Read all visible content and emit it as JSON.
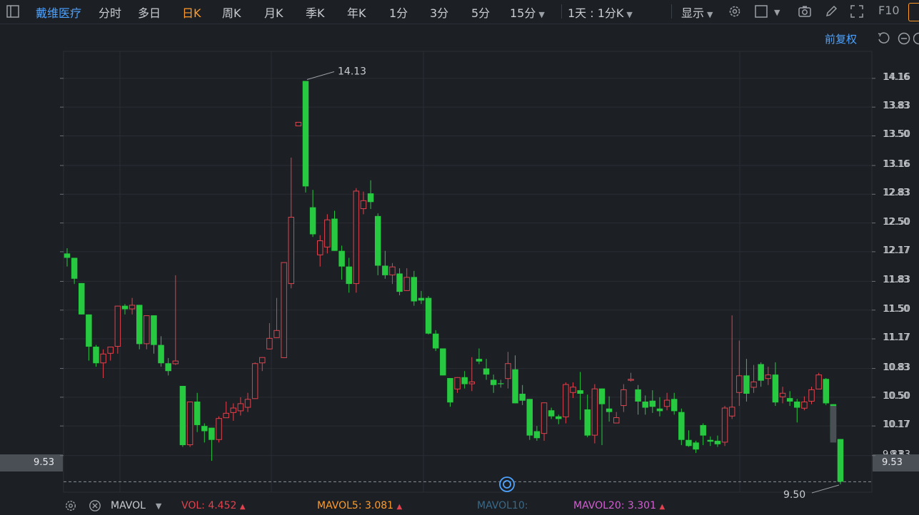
{
  "toolbar": {
    "stock_name": "戴维医疗",
    "periods": [
      "分时",
      "多日",
      "日K",
      "周K",
      "月K",
      "季K",
      "年K",
      "1分",
      "3分",
      "5分",
      "15分"
    ],
    "active_period": "日K",
    "interval_label": "1天 : 1分K",
    "display_label": "显示",
    "f10_label": "F10"
  },
  "subheader": {
    "adjust_label": "前复权"
  },
  "legend": {
    "indicator": "MAVOL",
    "vol_label": "VOL:",
    "vol_value": "4.452",
    "mavol5_label": "MAVOL5:",
    "mavol5_value": "3.081",
    "mavol10_label": "MAVOL10:",
    "mavol20_label": "MAVOL20:",
    "mavol20_value": "3.301"
  },
  "colors": {
    "up": "#e0434f",
    "down": "#26c940",
    "accent": "#ff9c2a",
    "link": "#4da3ff",
    "mavol5": "#ff9c2a",
    "mavol10": "#3a6a8a",
    "mavol20": "#d35fd3"
  },
  "chart_data": {
    "type": "candlestick",
    "y_ticks": [
      "14.16",
      "13.83",
      "13.50",
      "13.16",
      "12.83",
      "12.50",
      "12.17",
      "11.83",
      "11.50",
      "11.17",
      "10.83",
      "10.50",
      "10.17",
      "9.83"
    ],
    "ylim": [
      9.41,
      14.47
    ],
    "current_price": "9.53",
    "high_annotation": {
      "label": "14.13",
      "value": 14.13
    },
    "low_annotation": {
      "label": "9.50",
      "value": 9.5
    },
    "candles": [
      [
        12.15,
        12.1,
        12.21,
        12.0
      ],
      [
        12.1,
        11.86,
        12.1,
        11.8
      ],
      [
        11.81,
        11.45,
        11.81,
        11.45
      ],
      [
        11.45,
        11.08,
        11.45,
        10.92
      ],
      [
        11.08,
        10.89,
        11.1,
        10.85
      ],
      [
        10.89,
        11.0,
        11.05,
        10.72
      ],
      [
        11.0,
        11.08,
        11.08,
        10.92
      ],
      [
        11.08,
        11.55,
        11.55,
        11.0
      ],
      [
        11.55,
        11.51,
        11.57,
        11.45
      ],
      [
        11.51,
        11.56,
        11.64,
        11.45
      ],
      [
        11.56,
        11.11,
        11.56,
        11.05
      ],
      [
        11.11,
        11.44,
        11.44,
        11.05
      ],
      [
        11.44,
        11.1,
        11.44,
        11.0
      ],
      [
        11.1,
        10.89,
        11.2,
        10.85
      ],
      [
        10.89,
        10.8,
        10.95,
        10.75
      ],
      [
        10.88,
        10.92,
        11.9,
        10.87
      ],
      [
        10.63,
        9.95,
        10.63,
        9.93
      ],
      [
        9.95,
        10.45,
        10.45,
        9.93
      ],
      [
        10.45,
        10.18,
        10.55,
        10.1
      ],
      [
        10.17,
        10.11,
        10.2,
        9.98
      ],
      [
        10.15,
        10.01,
        10.15,
        9.77
      ],
      [
        10.01,
        10.26,
        10.28,
        9.98
      ],
      [
        10.26,
        10.32,
        10.45,
        10.28
      ],
      [
        10.32,
        10.38,
        10.43,
        10.23
      ],
      [
        10.34,
        10.43,
        10.5,
        10.29
      ],
      [
        10.38,
        10.48,
        10.55,
        10.33
      ],
      [
        10.48,
        10.89,
        10.9,
        10.48
      ],
      [
        10.89,
        10.96,
        10.96,
        10.8
      ],
      [
        11.05,
        11.18,
        11.35,
        11.05
      ],
      [
        11.18,
        11.27,
        11.64,
        11.18
      ],
      [
        10.95,
        12.05,
        12.05,
        10.95
      ],
      [
        11.8,
        12.57,
        13.25,
        11.75
      ],
      [
        13.61,
        13.66,
        13.66,
        13.61
      ],
      [
        14.13,
        12.92,
        14.13,
        12.85
      ],
      [
        12.68,
        12.37,
        12.88,
        12.34
      ],
      [
        12.13,
        12.3,
        12.36,
        12.0
      ],
      [
        12.22,
        12.54,
        12.6,
        12.15
      ],
      [
        12.55,
        12.18,
        12.64,
        12.18
      ],
      [
        12.18,
        12.0,
        12.24,
        11.85
      ],
      [
        12.0,
        11.8,
        12.1,
        11.7
      ],
      [
        11.8,
        12.87,
        12.9,
        11.7
      ],
      [
        12.66,
        12.76,
        12.86,
        12.6
      ],
      [
        12.84,
        12.74,
        12.99,
        12.66
      ],
      [
        12.58,
        12.01,
        12.61,
        11.9
      ],
      [
        12.01,
        11.9,
        12.18,
        11.86
      ],
      [
        11.9,
        12.0,
        12.04,
        11.8
      ],
      [
        11.92,
        11.71,
        11.98,
        11.67
      ],
      [
        11.72,
        11.88,
        11.98,
        11.72
      ],
      [
        11.88,
        11.6,
        11.95,
        11.55
      ],
      [
        11.64,
        11.61,
        11.72,
        11.57
      ],
      [
        11.64,
        11.23,
        11.66,
        11.22
      ],
      [
        11.23,
        11.06,
        11.27,
        11.03
      ],
      [
        11.06,
        10.75,
        11.06,
        10.75
      ],
      [
        10.72,
        10.44,
        10.72,
        10.39
      ],
      [
        10.59,
        10.73,
        10.73,
        10.55
      ],
      [
        10.73,
        10.65,
        10.8,
        10.6
      ],
      [
        10.65,
        10.68,
        10.96,
        10.57
      ],
      [
        10.94,
        10.91,
        11.06,
        10.88
      ],
      [
        10.83,
        10.76,
        10.94,
        10.7
      ],
      [
        10.7,
        10.64,
        10.76,
        10.55
      ],
      [
        10.66,
        10.65,
        10.7,
        10.61
      ],
      [
        10.71,
        10.89,
        11.02,
        10.6
      ],
      [
        10.82,
        10.43,
        10.98,
        10.43
      ],
      [
        10.54,
        10.46,
        10.64,
        10.41
      ],
      [
        10.48,
        10.06,
        10.48,
        10.01
      ],
      [
        10.11,
        10.03,
        10.17,
        10.0
      ],
      [
        10.08,
        10.44,
        10.44,
        10.0
      ],
      [
        10.35,
        10.28,
        10.38,
        10.25
      ],
      [
        10.28,
        10.25,
        10.3,
        10.19
      ],
      [
        10.27,
        10.65,
        10.67,
        10.2
      ],
      [
        10.55,
        10.62,
        10.67,
        10.49
      ],
      [
        10.58,
        10.54,
        10.79,
        10.24
      ],
      [
        10.36,
        10.06,
        10.53,
        10.04
      ],
      [
        10.06,
        10.6,
        10.65,
        9.97
      ],
      [
        10.6,
        10.42,
        10.6,
        9.95
      ],
      [
        10.37,
        10.33,
        10.51,
        10.22
      ],
      [
        10.2,
        10.27,
        10.33,
        10.25
      ],
      [
        10.4,
        10.59,
        10.65,
        10.33
      ],
      [
        10.69,
        10.71,
        10.78,
        10.68
      ],
      [
        10.59,
        10.45,
        10.64,
        10.3
      ],
      [
        10.45,
        10.38,
        10.52,
        10.3
      ],
      [
        10.46,
        10.39,
        10.58,
        10.32
      ],
      [
        10.37,
        10.34,
        10.5,
        10.28
      ],
      [
        10.39,
        10.47,
        10.55,
        10.35
      ],
      [
        10.48,
        10.34,
        10.55,
        10.3
      ],
      [
        10.33,
        10.01,
        10.37,
        9.95
      ],
      [
        10.01,
        9.94,
        10.12,
        9.93
      ],
      [
        9.98,
        9.9,
        10.0,
        9.86
      ],
      [
        10.18,
        10.06,
        10.2,
        9.95
      ],
      [
        10.01,
        9.99,
        10.05,
        9.94
      ],
      [
        10.0,
        9.96,
        10.06,
        9.93
      ],
      [
        9.98,
        10.38,
        10.4,
        9.94
      ],
      [
        10.28,
        10.39,
        11.44,
        10.25
      ],
      [
        10.55,
        10.75,
        11.15,
        10.4
      ],
      [
        10.75,
        10.54,
        10.94,
        10.45
      ],
      [
        10.61,
        10.68,
        10.87,
        10.55
      ],
      [
        10.88,
        10.69,
        10.9,
        10.62
      ],
      [
        10.71,
        10.76,
        10.85,
        10.64
      ],
      [
        10.76,
        10.44,
        10.9,
        10.4
      ],
      [
        10.5,
        10.55,
        10.62,
        10.43
      ],
      [
        10.49,
        10.45,
        10.57,
        10.4
      ],
      [
        10.45,
        10.38,
        10.48,
        10.21
      ],
      [
        10.37,
        10.45,
        10.51,
        10.35
      ],
      [
        10.45,
        10.59,
        10.62,
        10.42
      ],
      [
        10.59,
        10.76,
        10.78,
        10.59
      ],
      [
        10.71,
        10.43,
        10.72,
        10.41
      ],
      [
        10.42,
        10.02,
        10.42,
        10.0
      ],
      [
        10.02,
        9.53,
        10.02,
        9.5
      ]
    ]
  }
}
